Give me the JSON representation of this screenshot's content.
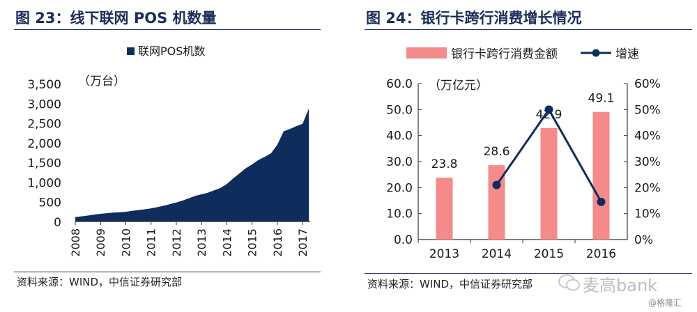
{
  "left_panel": {
    "title": "图 23：线下联网 POS 机数量",
    "source": "资料来源：WIND，中信证券研究部"
  },
  "right_panel": {
    "title": "图 24：银行卡跨行消费增长情况",
    "source": "资料来源：WIND，中信证券研究部"
  },
  "watermark": {
    "brand": "麦高bank",
    "handle": "@格隆汇"
  },
  "colors": {
    "navy": "#0f2d5c",
    "bar": "#f58a8a",
    "title": "#1b2d5a"
  },
  "chart_data": [
    {
      "type": "area",
      "legend": [
        "联网POS机数"
      ],
      "unit_label": "（万台）",
      "x_tick_labels": [
        "2008",
        "2009",
        "2010",
        "2011",
        "2012",
        "2013",
        "2014",
        "2015",
        "2016",
        "2017"
      ],
      "y_tick_labels": [
        "0",
        "500",
        "1,000",
        "1,500",
        "2,000",
        "2,500",
        "3,000",
        "3,500"
      ],
      "ylim": [
        0,
        3500
      ],
      "legend_position": "top-right",
      "series": [
        {
          "name": "联网POS机数",
          "x": [
            2008.0,
            2008.25,
            2008.5,
            2008.75,
            2009.0,
            2009.25,
            2009.5,
            2009.75,
            2010.0,
            2010.25,
            2010.5,
            2010.75,
            2011.0,
            2011.25,
            2011.5,
            2011.75,
            2012.0,
            2012.25,
            2012.5,
            2012.75,
            2013.0,
            2013.25,
            2013.5,
            2013.75,
            2014.0,
            2014.25,
            2014.5,
            2014.75,
            2015.0,
            2015.25,
            2015.5,
            2015.75,
            2016.0,
            2016.25,
            2016.5,
            2016.75,
            2017.0,
            2017.25
          ],
          "values": [
            110,
            130,
            150,
            175,
            195,
            210,
            225,
            235,
            245,
            270,
            290,
            310,
            330,
            365,
            400,
            440,
            480,
            530,
            590,
            650,
            690,
            730,
            790,
            850,
            950,
            1090,
            1220,
            1350,
            1450,
            1560,
            1640,
            1730,
            1950,
            2290,
            2350,
            2420,
            2480,
            2870
          ]
        }
      ]
    },
    {
      "type": "bar",
      "categories": [
        "2013",
        "2014",
        "2015",
        "2016"
      ],
      "unit_label": "（万亿元）",
      "legend_position": "top",
      "y_tick_labels": [
        "0.0",
        "10.0",
        "20.0",
        "30.0",
        "40.0",
        "50.0",
        "60.0"
      ],
      "y2_tick_labels": [
        "0%",
        "10%",
        "20%",
        "30%",
        "40%",
        "50%",
        "60%"
      ],
      "ylim": [
        0,
        60
      ],
      "y2lim": [
        0,
        0.6
      ],
      "series": [
        {
          "name": "银行卡跨行消费金额",
          "type": "bar",
          "values": [
            23.8,
            28.6,
            42.9,
            49.1
          ],
          "labels": [
            "23.8",
            "28.6",
            "42.9",
            "49.1"
          ]
        },
        {
          "name": "增速",
          "type": "line",
          "axis": "right",
          "values": [
            null,
            0.21,
            0.5,
            0.145
          ]
        }
      ]
    }
  ]
}
